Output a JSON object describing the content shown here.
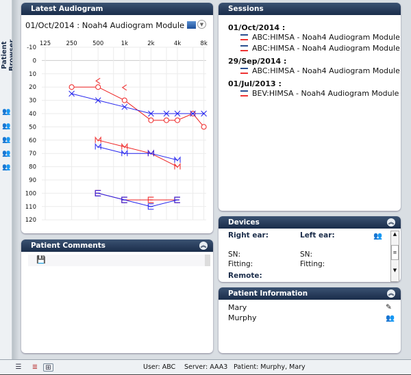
{
  "sidebar": {
    "title": "Patient Browser",
    "icons": [
      "patient-icon",
      "patient-edit-icon",
      "patient-flag-icon",
      "patient-new-icon",
      "patient-import-icon"
    ]
  },
  "audiogram": {
    "title": "Latest Audiogram",
    "subtitle": "01/Oct/2014 : Noah4 Audiogram Module"
  },
  "chart_data": {
    "type": "line",
    "x_scale": "log",
    "grid": true,
    "x_ticks": [
      "125",
      "250",
      "500",
      "1k",
      "2k",
      "4k",
      "8k"
    ],
    "x_tick_values": [
      125,
      250,
      500,
      1000,
      2000,
      4000,
      8000
    ],
    "y_ticks": [
      "-10",
      "0",
      "10",
      "20",
      "30",
      "40",
      "50",
      "60",
      "70",
      "80",
      "90",
      "100",
      "110",
      "120"
    ],
    "ylim": [
      -10,
      120
    ],
    "y_inverted": true,
    "colors": {
      "right": "#ee2222",
      "left": "#2222ee"
    },
    "series": [
      {
        "ear": "right",
        "marker": "O",
        "x": [
          250,
          500,
          1000,
          2000,
          3000,
          4000,
          6000,
          8000
        ],
        "y": [
          20,
          20,
          30,
          45,
          45,
          45,
          40,
          50
        ]
      },
      {
        "ear": "left",
        "marker": "X",
        "x": [
          250,
          500,
          1000,
          2000,
          3000,
          4000,
          6000,
          8000
        ],
        "y": [
          25,
          30,
          35,
          40,
          40,
          40,
          40,
          40
        ]
      },
      {
        "ear": "right",
        "marker": "<",
        "x": [
          500,
          1000
        ],
        "y": [
          20,
          25
        ],
        "line": false
      },
      {
        "ear": "right",
        "marker": "M",
        "x": [
          500,
          1000,
          2000,
          4000
        ],
        "y": [
          60,
          65,
          70,
          80
        ]
      },
      {
        "ear": "left",
        "marker": "M",
        "x": [
          500,
          1000,
          2000,
          4000
        ],
        "y": [
          65,
          70,
          70,
          75
        ]
      },
      {
        "ear": "right",
        "marker": "E",
        "x": [
          500,
          1000,
          2000,
          4000
        ],
        "y": [
          100,
          105,
          105,
          105
        ]
      },
      {
        "ear": "left",
        "marker": "E",
        "x": [
          500,
          1000,
          2000,
          4000
        ],
        "y": [
          100,
          105,
          110,
          105
        ]
      }
    ]
  },
  "comments": {
    "title": "Patient Comments"
  },
  "sessions": {
    "title": "Sessions",
    "groups": [
      {
        "date": "01/Oct/2014 :",
        "items": [
          "ABC:HIMSA  - Noah4 Audiogram Module",
          "ABC:HIMSA  - Noah4 Audiogram Module"
        ]
      },
      {
        "date": "29/Sep/2014 :",
        "items": [
          "ABC:HIMSA  - Noah4 Audiogram Module"
        ]
      },
      {
        "date": "01/Jul/2013 :",
        "items": [
          "BEV:HIMSA  - Noah4 Audiogram Module"
        ]
      }
    ]
  },
  "devices": {
    "title": "Devices",
    "right_ear": "Right ear:",
    "left_ear": "Left ear:",
    "sn": "SN:",
    "fitting": "Fitting:",
    "remote": "Remote:"
  },
  "patient_info": {
    "title": "Patient Information",
    "first": "Mary",
    "last": "Murphy"
  },
  "status": {
    "user": "User: ABC",
    "server": "Server: AAA3",
    "patient": "Patient: Murphy, Mary"
  }
}
